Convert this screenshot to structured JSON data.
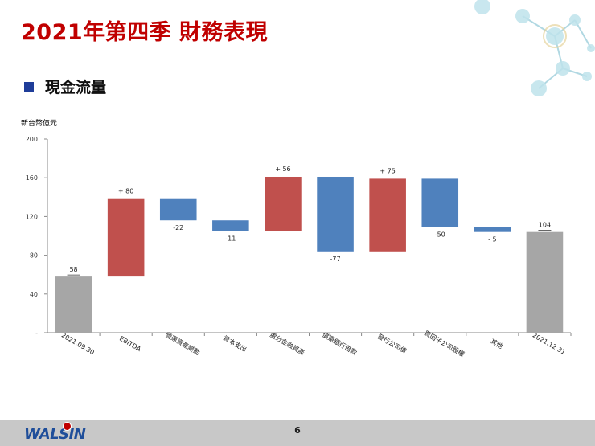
{
  "slide": {
    "title": "2021年第四季 財務表現",
    "section_label": "現金流量",
    "page_number": "6",
    "logo_text": "WALSIN"
  },
  "chart_data": {
    "type": "bar",
    "subtype": "waterfall",
    "unit_label": "新台幣億元",
    "ylim": [
      0,
      200
    ],
    "yticks": [
      "-",
      "40",
      "80",
      "120",
      "160",
      "200"
    ],
    "categories": [
      "2021.09.30",
      "EBITDA",
      "營運資產變動",
      "資本支出",
      "處分金融資產",
      "償還銀行借款",
      "發行公司債",
      "買回子公司股權",
      "其他",
      "2021.12.31"
    ],
    "steps": [
      {
        "kind": "total",
        "value": 58,
        "label": "58"
      },
      {
        "kind": "increase",
        "value": 80,
        "label": "+ 80"
      },
      {
        "kind": "decrease",
        "value": -22,
        "label": "-22"
      },
      {
        "kind": "decrease",
        "value": -11,
        "label": "-11"
      },
      {
        "kind": "increase",
        "value": 56,
        "label": "+ 56"
      },
      {
        "kind": "decrease",
        "value": -77,
        "label": "-77"
      },
      {
        "kind": "increase",
        "value": 75,
        "label": "+ 75"
      },
      {
        "kind": "decrease",
        "value": -50,
        "label": "-50"
      },
      {
        "kind": "decrease",
        "value": -5,
        "label": "- 5"
      },
      {
        "kind": "total",
        "value": 104,
        "label": "104"
      }
    ],
    "colors": {
      "total": "#a6a6a6",
      "increase": "#c0504d",
      "decrease": "#4f81bd"
    },
    "grid": false,
    "legend": "none"
  }
}
